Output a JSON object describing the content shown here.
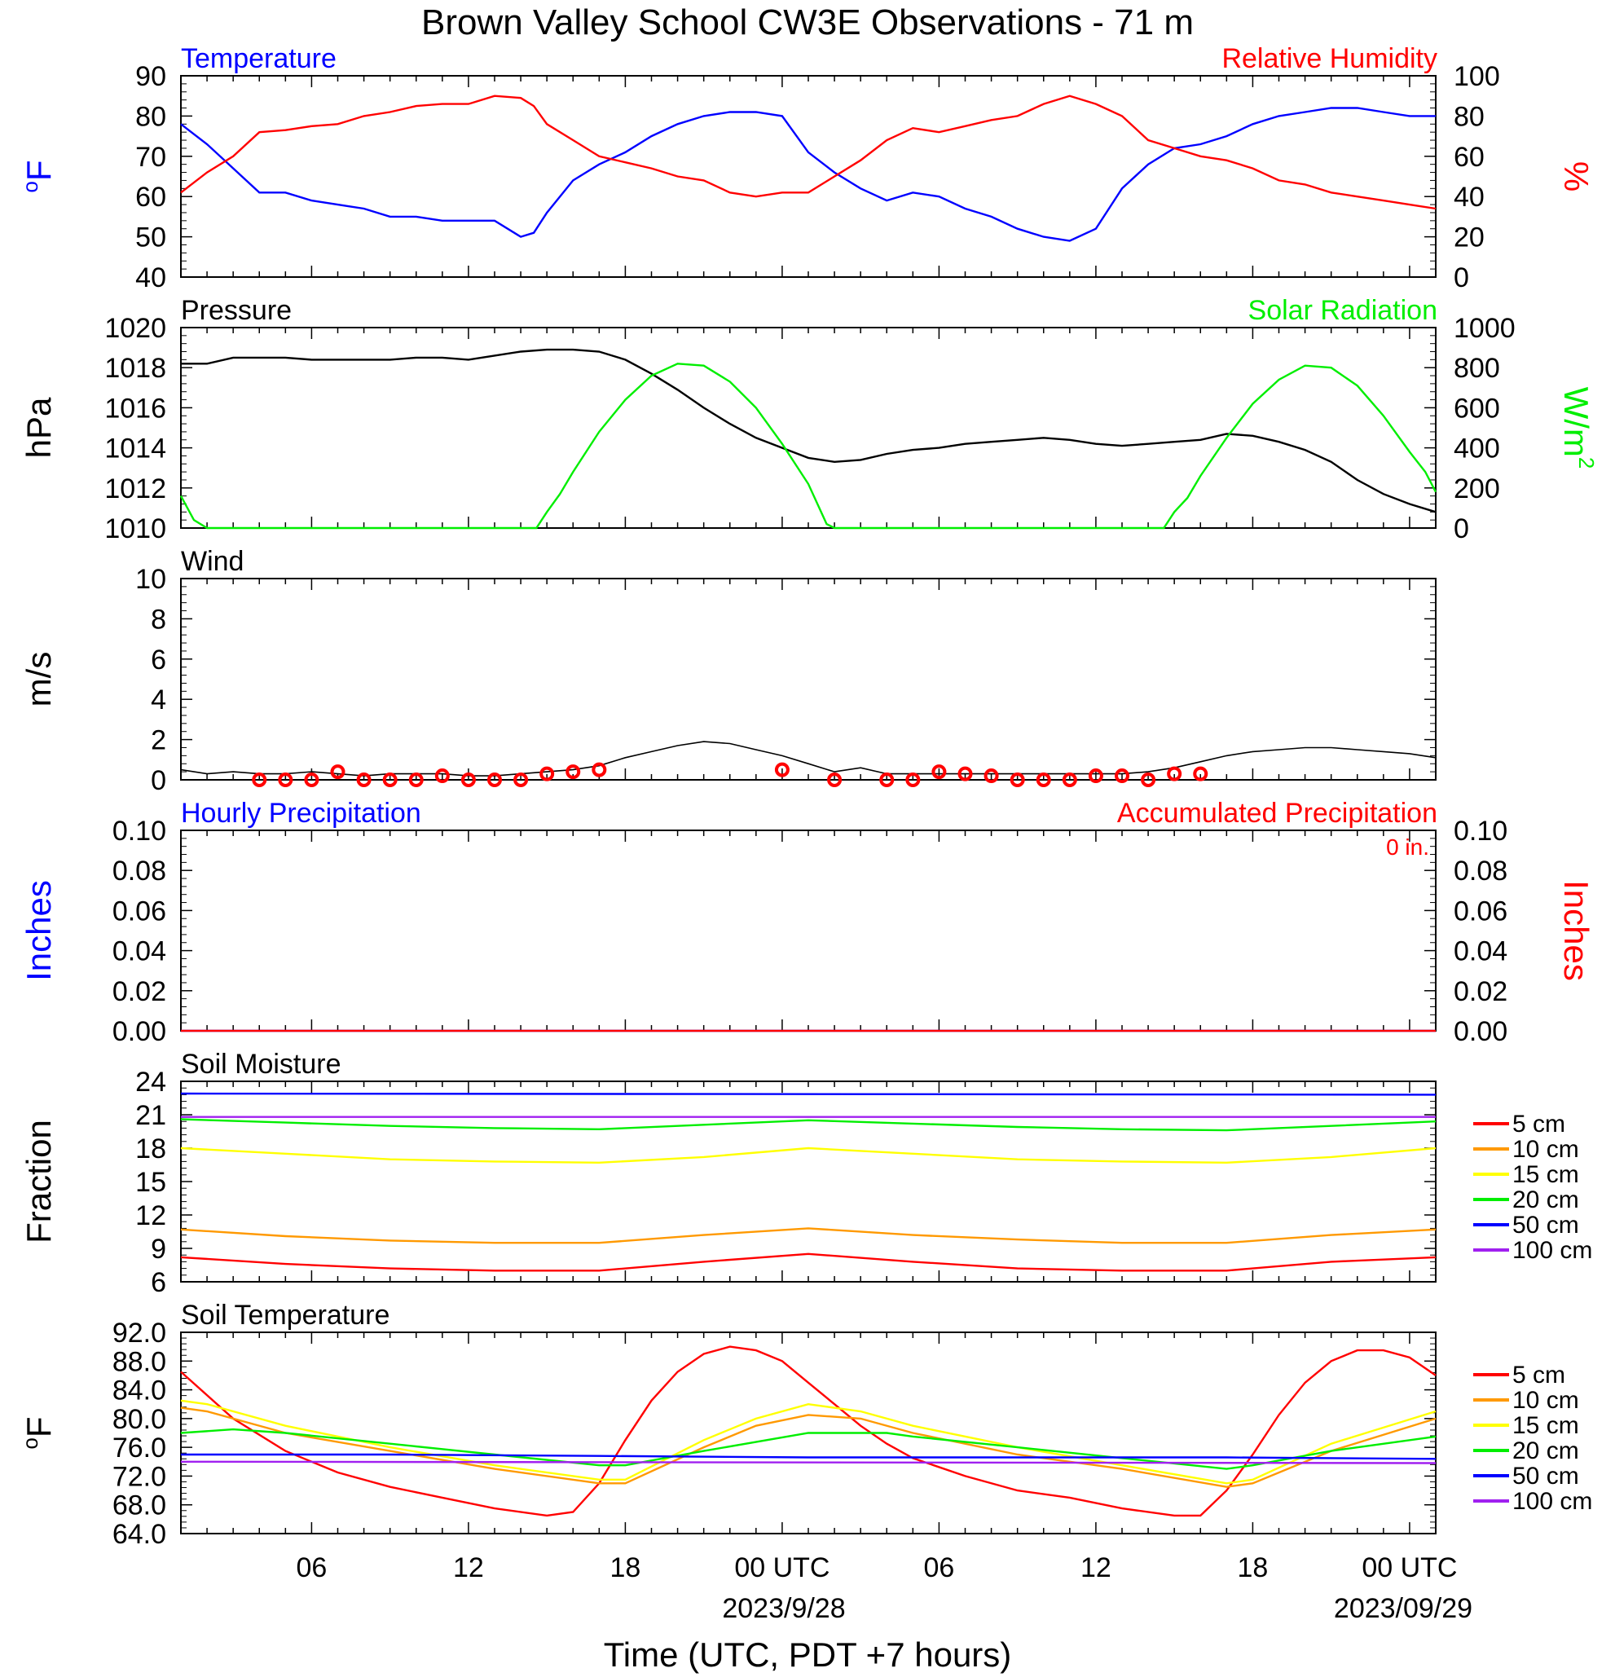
{
  "page": {
    "title": "Brown Valley School CW3E Observations - 71 m",
    "xlabel": "Time (UTC, PDT +7 hours)",
    "x_ticks": [
      "06",
      "12",
      "18",
      "00 UTC",
      "06",
      "12",
      "18",
      "00 UTC"
    ],
    "date_labels": [
      "2023/9/28",
      "2023/09/29"
    ]
  },
  "colors": {
    "blue": "#0000ff",
    "red": "#ff0000",
    "green": "#00ee00",
    "black": "#000000",
    "orange": "#ff9900",
    "yellow": "#ffff00",
    "purple": "#a020f0"
  },
  "chart_data": [
    {
      "type": "line",
      "title_left": "Temperature",
      "title_right": "Relative Humidity",
      "ylabel_left": "oF",
      "ylabel_right": "%",
      "ylim_left": [
        40,
        90
      ],
      "ylim_right": [
        0,
        100
      ],
      "yticks_left": [
        "40",
        "50",
        "60",
        "70",
        "80",
        "90"
      ],
      "yticks_right": [
        "0",
        "20",
        "40",
        "60",
        "80",
        "100"
      ],
      "series": [
        {
          "name": "Temperature",
          "axis": "left",
          "x": [
            1,
            2,
            3,
            4,
            5,
            6,
            7,
            8,
            9,
            10,
            11,
            12,
            13,
            14,
            14.5,
            15,
            16,
            17,
            18,
            19,
            20,
            21,
            22,
            23,
            24,
            25,
            26,
            27,
            28,
            29,
            30,
            31,
            32,
            33,
            34,
            35,
            36,
            37,
            38,
            39,
            40,
            41,
            42,
            43,
            44,
            45,
            46,
            47,
            48,
            49
          ],
          "y": [
            78,
            73,
            67,
            61,
            61,
            59,
            58,
            57,
            55,
            55,
            54,
            54,
            54,
            50,
            51,
            56,
            64,
            68,
            71,
            75,
            78,
            80,
            81,
            81,
            80,
            71,
            66,
            62,
            59,
            61,
            60,
            57,
            55,
            52,
            50,
            49,
            52,
            62,
            68,
            72,
            73,
            75,
            78,
            80,
            81,
            82,
            82,
            81,
            80,
            80
          ]
        },
        {
          "name": "Relative Humidity",
          "axis": "right",
          "x": [
            1,
            2,
            3,
            4,
            5,
            6,
            7,
            8,
            9,
            10,
            11,
            12,
            13,
            14,
            14.5,
            15,
            16,
            17,
            18,
            19,
            20,
            21,
            22,
            23,
            24,
            25,
            26,
            27,
            28,
            29,
            30,
            31,
            32,
            33,
            34,
            35,
            36,
            37,
            38,
            39,
            40,
            41,
            42,
            43,
            44,
            45,
            46,
            47,
            48,
            49
          ],
          "y": [
            42,
            52,
            60,
            72,
            73,
            75,
            76,
            80,
            82,
            85,
            86,
            86,
            90,
            89,
            85,
            76,
            68,
            60,
            57,
            54,
            50,
            48,
            42,
            40,
            42,
            42,
            50,
            58,
            68,
            74,
            72,
            75,
            78,
            80,
            86,
            90,
            86,
            80,
            68,
            64,
            60,
            58,
            54,
            48,
            46,
            42,
            40,
            38,
            36,
            34
          ]
        }
      ]
    },
    {
      "type": "line",
      "title_left": "Pressure",
      "title_right": "Solar Radiation",
      "ylabel_left": "hPa",
      "ylabel_right": "W/m2",
      "ylim_left": [
        1010,
        1020
      ],
      "ylim_right": [
        0,
        1000
      ],
      "yticks_left": [
        "1010",
        "1012",
        "1014",
        "1016",
        "1018",
        "1020"
      ],
      "yticks_right": [
        "0",
        "200",
        "400",
        "600",
        "800",
        "1000"
      ],
      "series": [
        {
          "name": "Pressure",
          "axis": "left",
          "x": [
            1,
            2,
            3,
            4,
            5,
            6,
            7,
            8,
            9,
            10,
            11,
            12,
            13,
            14,
            15,
            16,
            17,
            18,
            19,
            20,
            21,
            22,
            23,
            24,
            25,
            26,
            27,
            28,
            29,
            30,
            31,
            32,
            33,
            34,
            35,
            36,
            37,
            38,
            39,
            40,
            41,
            42,
            43,
            44,
            45,
            46,
            47,
            48,
            49
          ],
          "y": [
            1018.2,
            1018.2,
            1018.5,
            1018.5,
            1018.5,
            1018.4,
            1018.4,
            1018.4,
            1018.4,
            1018.5,
            1018.5,
            1018.4,
            1018.6,
            1018.8,
            1018.9,
            1018.9,
            1018.8,
            1018.4,
            1017.7,
            1016.9,
            1016.0,
            1015.2,
            1014.5,
            1014.0,
            1013.5,
            1013.3,
            1013.4,
            1013.7,
            1013.9,
            1014.0,
            1014.2,
            1014.3,
            1014.4,
            1014.5,
            1014.4,
            1014.2,
            1014.1,
            1014.2,
            1014.3,
            1014.4,
            1014.7,
            1014.6,
            1014.3,
            1013.9,
            1013.3,
            1012.4,
            1011.7,
            1011.2,
            1010.8
          ]
        },
        {
          "name": "Solar Radiation",
          "axis": "right",
          "x": [
            1,
            1.5,
            2,
            14.6,
            15,
            15.5,
            16,
            17,
            18,
            19,
            20,
            21,
            22,
            23,
            24,
            25,
            25.7,
            26,
            38.6,
            39,
            39.5,
            40,
            41,
            42,
            43,
            44,
            45,
            46,
            47,
            48,
            48.6,
            49
          ],
          "y": [
            160,
            40,
            0,
            0,
            80,
            170,
            280,
            480,
            640,
            760,
            820,
            810,
            730,
            600,
            420,
            220,
            20,
            0,
            0,
            80,
            150,
            260,
            450,
            620,
            740,
            810,
            800,
            710,
            560,
            380,
            280,
            180
          ]
        }
      ]
    },
    {
      "type": "line",
      "title_left": "Wind",
      "ylabel_left": "m/s",
      "ylim_left": [
        0,
        10
      ],
      "yticks_left": [
        "0",
        "2",
        "4",
        "6",
        "8",
        "10"
      ],
      "series": [
        {
          "name": "Wind",
          "axis": "left",
          "x": [
            1,
            2,
            3,
            4,
            5,
            6,
            7,
            8,
            9,
            10,
            11,
            12,
            13,
            14,
            15,
            16,
            17,
            18,
            19,
            20,
            21,
            22,
            23,
            24,
            25,
            26,
            27,
            28,
            29,
            30,
            31,
            32,
            33,
            34,
            35,
            36,
            37,
            38,
            39,
            40,
            41,
            42,
            43,
            44,
            45,
            46,
            47,
            48,
            49
          ],
          "y": [
            0.5,
            0.3,
            0.4,
            0.3,
            0.3,
            0.4,
            0.3,
            0.2,
            0.3,
            0.3,
            0.3,
            0.2,
            0.2,
            0.3,
            0.4,
            0.5,
            0.7,
            1.1,
            1.4,
            1.7,
            1.9,
            1.8,
            1.5,
            1.2,
            0.8,
            0.4,
            0.6,
            0.3,
            0.3,
            0.3,
            0.3,
            0.3,
            0.3,
            0.3,
            0.3,
            0.3,
            0.3,
            0.4,
            0.6,
            0.9,
            1.2,
            1.4,
            1.5,
            1.6,
            1.6,
            1.5,
            1.4,
            1.3,
            1.1
          ]
        },
        {
          "name": "Wind direction",
          "axis": "left",
          "x": [
            4,
            5,
            6,
            7,
            8,
            9,
            10,
            11,
            12,
            13,
            14,
            15,
            16,
            17,
            24,
            26,
            28,
            29,
            30,
            31,
            32,
            33,
            34,
            35,
            36,
            37,
            38,
            39,
            40
          ],
          "y": [
            0,
            0,
            0,
            0.4,
            0,
            0,
            0,
            0.2,
            0,
            0,
            0,
            0.3,
            0.4,
            0.5,
            0.5,
            0,
            0,
            0,
            0.4,
            0.3,
            0.2,
            0,
            0,
            0,
            0.2,
            0.2,
            0,
            0.3,
            0.3
          ]
        }
      ]
    },
    {
      "type": "line",
      "title_left": "Hourly Precipitation",
      "title_right": "Accumulated Precipitation",
      "annotation": "0 in.",
      "ylabel_left": "Inches",
      "ylabel_right": "Inches",
      "ylim_left": [
        0,
        0.1
      ],
      "ylim_right": [
        0,
        0.1
      ],
      "yticks_left": [
        "0.00",
        "0.02",
        "0.04",
        "0.06",
        "0.08",
        "0.10"
      ],
      "yticks_right": [
        "0.00",
        "0.02",
        "0.04",
        "0.06",
        "0.08",
        "0.10"
      ],
      "series": [
        {
          "name": "Hourly Precipitation",
          "axis": "left",
          "x": [
            1,
            49
          ],
          "y": [
            0,
            0
          ]
        },
        {
          "name": "Accumulated Precipitation",
          "axis": "right",
          "x": [
            1,
            49
          ],
          "y": [
            0,
            0
          ]
        }
      ]
    },
    {
      "type": "line",
      "title_left": "Soil Moisture",
      "ylabel_left": "Fraction",
      "ylim_left": [
        6,
        24
      ],
      "yticks_left": [
        "6",
        "9",
        "12",
        "15",
        "18",
        "21",
        "24"
      ],
      "legend": [
        "5 cm",
        "10 cm",
        "15 cm",
        "20 cm",
        "50 cm",
        "100 cm"
      ],
      "series": [
        {
          "name": "5 cm",
          "axis": "left",
          "x": [
            1,
            5,
            9,
            13,
            17,
            21,
            25,
            29,
            33,
            37,
            41,
            45,
            49
          ],
          "y": [
            8.2,
            7.6,
            7.2,
            7.0,
            7.0,
            7.8,
            8.5,
            7.8,
            7.2,
            7.0,
            7.0,
            7.8,
            8.2
          ]
        },
        {
          "name": "10 cm",
          "axis": "left",
          "x": [
            1,
            5,
            9,
            13,
            17,
            21,
            25,
            29,
            33,
            37,
            41,
            45,
            49
          ],
          "y": [
            10.7,
            10.1,
            9.7,
            9.5,
            9.5,
            10.2,
            10.8,
            10.2,
            9.8,
            9.5,
            9.5,
            10.2,
            10.7
          ]
        },
        {
          "name": "15 cm",
          "axis": "left",
          "x": [
            1,
            5,
            9,
            13,
            17,
            21,
            25,
            29,
            33,
            37,
            41,
            45,
            49
          ],
          "y": [
            18.0,
            17.5,
            17.0,
            16.8,
            16.7,
            17.2,
            18.0,
            17.5,
            17.0,
            16.8,
            16.7,
            17.2,
            18.0
          ]
        },
        {
          "name": "20 cm",
          "axis": "left",
          "x": [
            1,
            5,
            9,
            13,
            17,
            21,
            25,
            29,
            33,
            37,
            41,
            45,
            49
          ],
          "y": [
            20.6,
            20.3,
            20.0,
            19.8,
            19.7,
            20.1,
            20.5,
            20.2,
            19.9,
            19.7,
            19.6,
            20.0,
            20.4
          ]
        },
        {
          "name": "50 cm",
          "axis": "left",
          "x": [
            1,
            49
          ],
          "y": [
            22.9,
            22.8
          ]
        },
        {
          "name": "100 cm",
          "axis": "left",
          "x": [
            1,
            49
          ],
          "y": [
            20.8,
            20.8
          ]
        }
      ]
    },
    {
      "type": "line",
      "title_left": "Soil Temperature",
      "ylabel_left": "oF",
      "ylim_left": [
        64,
        92
      ],
      "yticks_left": [
        "64.0",
        "68.0",
        "72.0",
        "76.0",
        "80.0",
        "84.0",
        "88.0",
        "92.0"
      ],
      "legend": [
        "5 cm",
        "10 cm",
        "15 cm",
        "20 cm",
        "50 cm",
        "100 cm"
      ],
      "series": [
        {
          "name": "5 cm",
          "axis": "left",
          "x": [
            1,
            3,
            5,
            7,
            9,
            11,
            13,
            15,
            16,
            17,
            18,
            19,
            20,
            21,
            22,
            23,
            24,
            25,
            26,
            27,
            28,
            29,
            31,
            33,
            35,
            37,
            39,
            40,
            41,
            42,
            43,
            44,
            45,
            46,
            47,
            48,
            49
          ],
          "y": [
            86.5,
            80,
            75.5,
            72.5,
            70.5,
            69,
            67.5,
            66.5,
            67,
            71,
            77,
            82.5,
            86.5,
            89,
            90,
            89.5,
            88,
            85,
            82,
            79,
            76.5,
            74.5,
            72,
            70,
            69,
            67.5,
            66.5,
            66.5,
            70,
            75,
            80.5,
            85,
            88,
            89.5,
            89.5,
            88.5,
            86
          ]
        },
        {
          "name": "10 cm",
          "axis": "left",
          "x": [
            1,
            2,
            5,
            9,
            13,
            17,
            18,
            21,
            23,
            25,
            27,
            29,
            33,
            37,
            41,
            42,
            45,
            49
          ],
          "y": [
            81.5,
            81,
            78,
            75.5,
            73,
            71,
            71,
            76,
            79,
            80.5,
            80,
            78,
            75,
            73,
            70.5,
            71,
            75.5,
            80
          ]
        },
        {
          "name": "15 cm",
          "axis": "left",
          "x": [
            1,
            2,
            5,
            9,
            13,
            17,
            18,
            21,
            23,
            25,
            27,
            29,
            33,
            37,
            41,
            42,
            45,
            49
          ],
          "y": [
            82.5,
            82,
            79,
            76,
            73.5,
            71.5,
            71.5,
            77,
            80,
            82,
            81,
            79,
            76,
            73.5,
            71,
            71.5,
            76.5,
            81
          ]
        },
        {
          "name": "20 cm",
          "axis": "left",
          "x": [
            1,
            3,
            5,
            9,
            13,
            17,
            18,
            21,
            25,
            28,
            29,
            33,
            37,
            41,
            42,
            45,
            49
          ],
          "y": [
            78,
            78.5,
            78,
            76.5,
            75,
            73.5,
            73.5,
            75.5,
            78,
            78,
            77.5,
            76,
            74.5,
            73,
            73.5,
            75.5,
            77.5
          ]
        },
        {
          "name": "50 cm",
          "axis": "left",
          "x": [
            1,
            9,
            17,
            25,
            33,
            41,
            49
          ],
          "y": [
            75,
            75,
            74.8,
            74.6,
            74.6,
            74.6,
            74.4
          ]
        },
        {
          "name": "100 cm",
          "axis": "left",
          "x": [
            1,
            49
          ],
          "y": [
            74,
            73.8
          ]
        }
      ]
    }
  ]
}
